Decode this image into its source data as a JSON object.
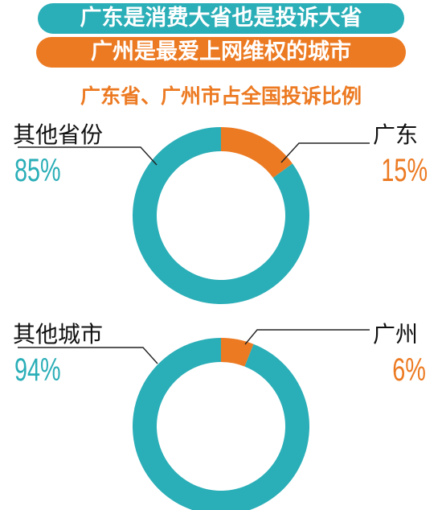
{
  "header": {
    "banner1": "广东是消费大省也是投诉大省",
    "banner2": "广州是最爱上网维权的城市",
    "subtitle": "广东省、广州市占全国投诉比例"
  },
  "colors": {
    "teal": "#2aaeb7",
    "orange": "#ec7a22"
  },
  "chart_data": [
    {
      "type": "pie",
      "donut": true,
      "title": "",
      "slices": [
        {
          "label": "广东",
          "value": 15,
          "value_label": "15%",
          "color": "#ec7a22"
        },
        {
          "label": "其他省份",
          "value": 85,
          "value_label": "85%",
          "color": "#2aaeb7"
        }
      ]
    },
    {
      "type": "pie",
      "donut": true,
      "title": "",
      "slices": [
        {
          "label": "广州",
          "value": 6,
          "value_label": "6%",
          "color": "#ec7a22"
        },
        {
          "label": "其他城市",
          "value": 94,
          "value_label": "94%",
          "color": "#2aaeb7"
        }
      ]
    }
  ]
}
